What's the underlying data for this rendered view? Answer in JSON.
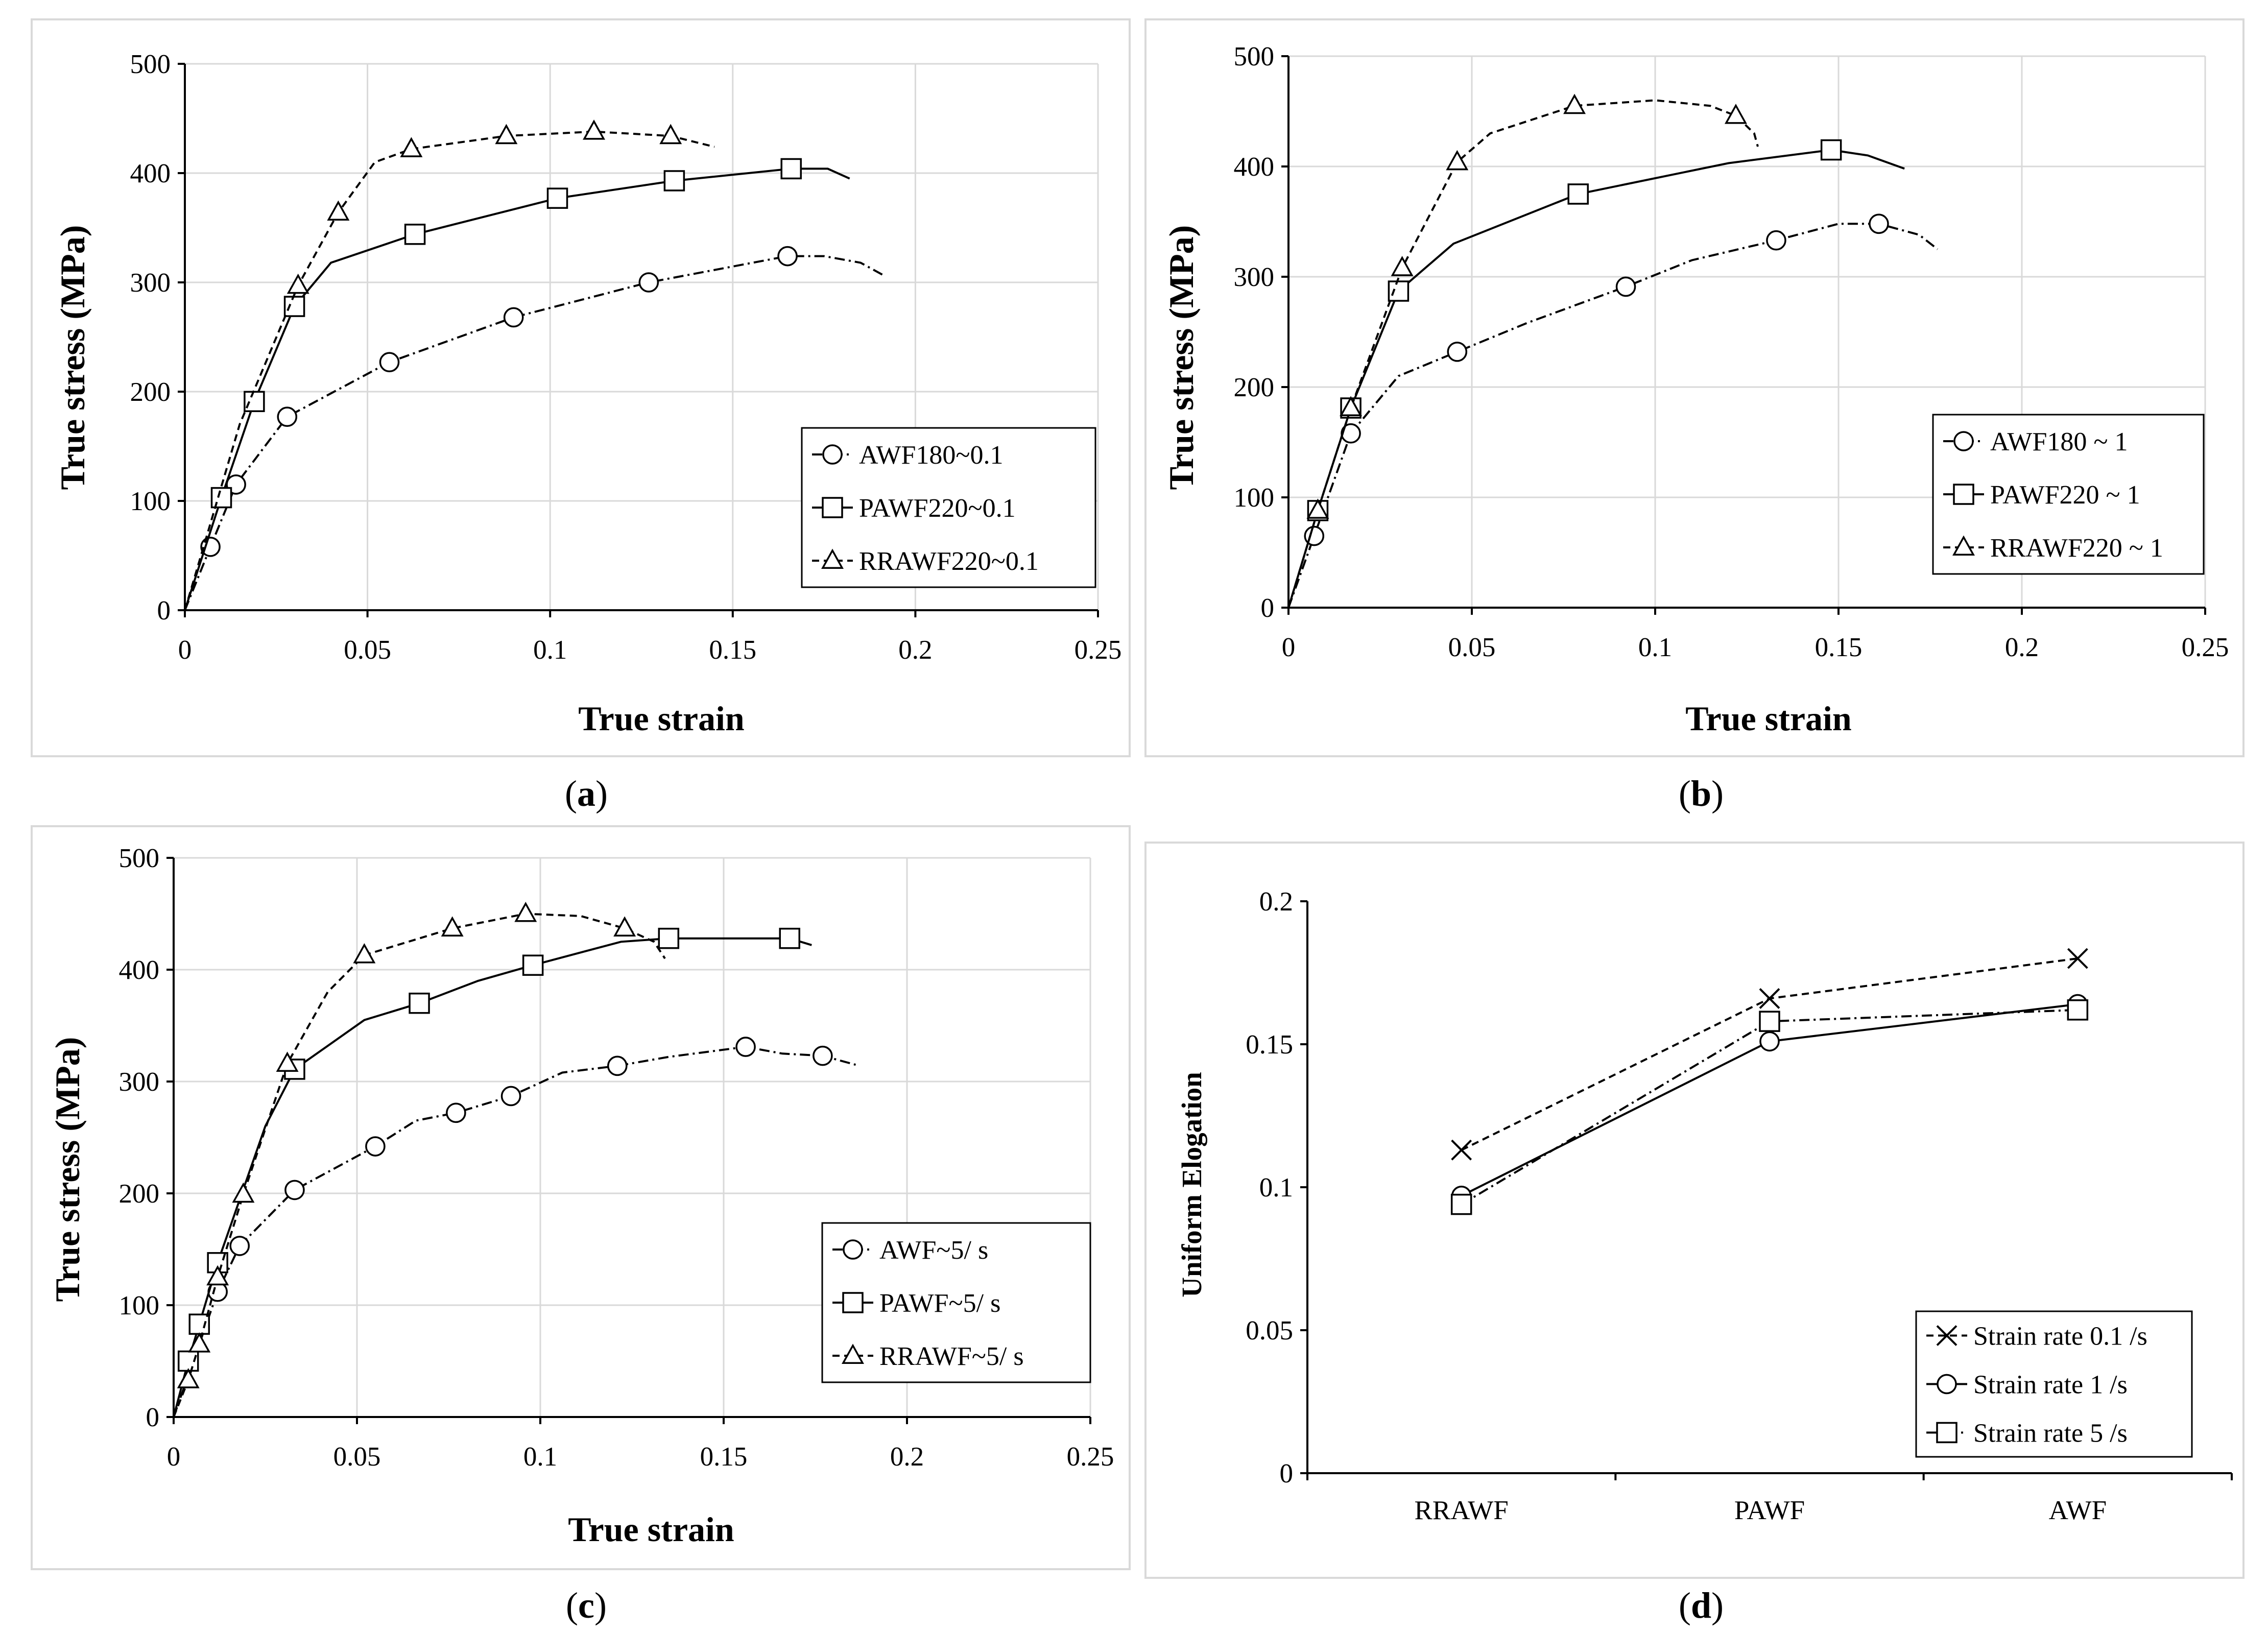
{
  "figure": {
    "captions": [
      {
        "open": "(",
        "letter": "a",
        "close": ")"
      },
      {
        "open": "(",
        "letter": "b",
        "close": ")"
      },
      {
        "open": "(",
        "letter": "c",
        "close": ")"
      },
      {
        "open": "(",
        "letter": "d",
        "close": ")"
      }
    ]
  },
  "chart_data": [
    {
      "type": "line",
      "panel": "a",
      "xlabel": "True strain",
      "ylabel": "True stress (MPa)",
      "xlim": [
        0,
        0.25
      ],
      "ylim": [
        0,
        500
      ],
      "xticks": [
        "0",
        "0.05",
        "0.1",
        "0.15",
        "0.2",
        "0.25"
      ],
      "yticks": [
        "0",
        "100",
        "200",
        "300",
        "400",
        "500"
      ],
      "legend_position": "lower-right",
      "series": [
        {
          "name": "AWF180~0.1",
          "marker": "circle",
          "dash": "dashdot",
          "points": [
            [
              0,
              0
            ],
            [
              0.007,
              58
            ],
            [
              0.014,
              115
            ],
            [
              0.028,
              177
            ],
            [
              0.056,
              227
            ],
            [
              0.09,
              268
            ],
            [
              0.127,
              300
            ],
            [
              0.165,
              324
            ],
            [
              0.175,
              324
            ],
            [
              0.185,
              318
            ],
            [
              0.191,
              307
            ]
          ],
          "markers": [
            [
              0.007,
              58
            ],
            [
              0.014,
              115
            ],
            [
              0.028,
              177
            ],
            [
              0.056,
              227
            ],
            [
              0.09,
              268
            ],
            [
              0.127,
              300
            ],
            [
              0.165,
              324
            ]
          ]
        },
        {
          "name": "PAWF220~0.1",
          "marker": "square",
          "dash": "solid",
          "points": [
            [
              0,
              0
            ],
            [
              0.01,
              103
            ],
            [
              0.019,
              191
            ],
            [
              0.03,
              278
            ],
            [
              0.04,
              318
            ],
            [
              0.063,
              344
            ],
            [
              0.102,
              377
            ],
            [
              0.134,
              393
            ],
            [
              0.166,
              404
            ],
            [
              0.176,
              404
            ],
            [
              0.182,
              395
            ]
          ],
          "markers": [
            [
              0.01,
              103
            ],
            [
              0.019,
              191
            ],
            [
              0.03,
              278
            ],
            [
              0.063,
              344
            ],
            [
              0.102,
              377
            ],
            [
              0.134,
              393
            ],
            [
              0.166,
              404
            ]
          ]
        },
        {
          "name": "RRAWF220~0.1",
          "marker": "triangle",
          "dash": "dashed",
          "points": [
            [
              0,
              0
            ],
            [
              0.015,
              170
            ],
            [
              0.031,
              297
            ],
            [
              0.042,
              364
            ],
            [
              0.052,
              410
            ],
            [
              0.062,
              422
            ],
            [
              0.088,
              434
            ],
            [
              0.112,
              438
            ],
            [
              0.133,
              434
            ],
            [
              0.145,
              424
            ]
          ],
          "markers": [
            [
              0.031,
              297
            ],
            [
              0.042,
              364
            ],
            [
              0.062,
              422
            ],
            [
              0.088,
              434
            ],
            [
              0.112,
              438
            ],
            [
              0.133,
              434
            ]
          ]
        }
      ]
    },
    {
      "type": "line",
      "panel": "b",
      "xlabel": "True strain",
      "ylabel": "True stress (MPa)",
      "xlim": [
        0,
        0.25
      ],
      "ylim": [
        0,
        500
      ],
      "xticks": [
        "0",
        "0.05",
        "0.1",
        "0.15",
        "0.2",
        "0.25"
      ],
      "yticks": [
        "0",
        "100",
        "200",
        "300",
        "400",
        "500"
      ],
      "legend_position": "center-right",
      "series": [
        {
          "name": "AWF180 ~ 1",
          "marker": "circle",
          "dash": "dashdot",
          "points": [
            [
              0,
              0
            ],
            [
              0.007,
              65
            ],
            [
              0.017,
              158
            ],
            [
              0.03,
              210
            ],
            [
              0.046,
              232
            ],
            [
              0.065,
              258
            ],
            [
              0.092,
              291
            ],
            [
              0.11,
              315
            ],
            [
              0.133,
              333
            ],
            [
              0.15,
              348
            ],
            [
              0.161,
              348
            ],
            [
              0.172,
              338
            ],
            [
              0.177,
              325
            ]
          ],
          "markers": [
            [
              0.007,
              65
            ],
            [
              0.017,
              158
            ],
            [
              0.046,
              232
            ],
            [
              0.092,
              291
            ],
            [
              0.133,
              333
            ],
            [
              0.161,
              348
            ]
          ]
        },
        {
          "name": "PAWF220 ~ 1",
          "marker": "square",
          "dash": "solid",
          "points": [
            [
              0,
              0
            ],
            [
              0.008,
              88
            ],
            [
              0.017,
              181
            ],
            [
              0.03,
              287
            ],
            [
              0.045,
              330
            ],
            [
              0.079,
              375
            ],
            [
              0.12,
              403
            ],
            [
              0.148,
              415
            ],
            [
              0.158,
              410
            ],
            [
              0.168,
              398
            ]
          ],
          "markers": [
            [
              0.008,
              88
            ],
            [
              0.017,
              181
            ],
            [
              0.03,
              287
            ],
            [
              0.079,
              375
            ],
            [
              0.148,
              415
            ]
          ]
        },
        {
          "name": "RRAWF220 ~ 1",
          "marker": "triangle",
          "dash": "dashed",
          "points": [
            [
              0,
              0
            ],
            [
              0.008,
              88
            ],
            [
              0.017,
              181
            ],
            [
              0.031,
              308
            ],
            [
              0.046,
              404
            ],
            [
              0.055,
              430
            ],
            [
              0.078,
              455
            ],
            [
              0.1,
              460
            ],
            [
              0.115,
              455
            ],
            [
              0.122,
              446
            ],
            [
              0.127,
              430
            ],
            [
              0.128,
              418
            ]
          ],
          "markers": [
            [
              0.008,
              88
            ],
            [
              0.017,
              181
            ],
            [
              0.031,
              308
            ],
            [
              0.046,
              404
            ],
            [
              0.078,
              455
            ],
            [
              0.122,
              446
            ]
          ]
        }
      ]
    },
    {
      "type": "line",
      "panel": "c",
      "xlabel": "True strain",
      "ylabel": "True stress (MPa)",
      "xlim": [
        0,
        0.25
      ],
      "ylim": [
        0,
        500
      ],
      "xticks": [
        "0",
        "0.05",
        "0.1",
        "0.15",
        "0.2",
        "0.25"
      ],
      "yticks": [
        "0",
        "100",
        "200",
        "300",
        "400",
        "500"
      ],
      "legend_position": "lower-right",
      "series": [
        {
          "name": "AWF~5/ s",
          "marker": "circle",
          "dash": "dashdot",
          "points": [
            [
              0,
              0
            ],
            [
              0.012,
              112
            ],
            [
              0.018,
              153
            ],
            [
              0.033,
              203
            ],
            [
              0.055,
              242
            ],
            [
              0.066,
              265
            ],
            [
              0.077,
              272
            ],
            [
              0.092,
              287
            ],
            [
              0.106,
              308
            ],
            [
              0.121,
              314
            ],
            [
              0.135,
              322
            ],
            [
              0.156,
              331
            ],
            [
              0.166,
              325
            ],
            [
              0.177,
              323
            ],
            [
              0.186,
              315
            ]
          ],
          "markers": [
            [
              0.012,
              112
            ],
            [
              0.018,
              153
            ],
            [
              0.033,
              203
            ],
            [
              0.055,
              242
            ],
            [
              0.077,
              272
            ],
            [
              0.092,
              287
            ],
            [
              0.121,
              314
            ],
            [
              0.156,
              331
            ],
            [
              0.177,
              323
            ]
          ]
        },
        {
          "name": "PAWF~5/ s",
          "marker": "square",
          "dash": "solid",
          "points": [
            [
              0,
              0
            ],
            [
              0.004,
              50
            ],
            [
              0.007,
              83
            ],
            [
              0.012,
              138
            ],
            [
              0.025,
              260
            ],
            [
              0.033,
              311
            ],
            [
              0.052,
              355
            ],
            [
              0.067,
              370
            ],
            [
              0.083,
              390
            ],
            [
              0.098,
              404
            ],
            [
              0.122,
              425
            ],
            [
              0.135,
              428
            ],
            [
              0.16,
              428
            ],
            [
              0.168,
              428
            ],
            [
              0.174,
              422
            ]
          ],
          "markers": [
            [
              0.004,
              50
            ],
            [
              0.007,
              83
            ],
            [
              0.012,
              138
            ],
            [
              0.033,
              311
            ],
            [
              0.067,
              370
            ],
            [
              0.098,
              404
            ],
            [
              0.135,
              428
            ],
            [
              0.168,
              428
            ]
          ]
        },
        {
          "name": "RRAWF~5/ s",
          "marker": "triangle",
          "dash": "dashed",
          "points": [
            [
              0,
              0
            ],
            [
              0.004,
              33
            ],
            [
              0.007,
              65
            ],
            [
              0.012,
              125
            ],
            [
              0.019,
              199
            ],
            [
              0.031,
              316
            ],
            [
              0.042,
              380
            ],
            [
              0.052,
              413
            ],
            [
              0.076,
              437
            ],
            [
              0.096,
              450
            ],
            [
              0.111,
              448
            ],
            [
              0.123,
              437
            ],
            [
              0.131,
              425
            ],
            [
              0.134,
              410
            ]
          ],
          "markers": [
            [
              0.004,
              33
            ],
            [
              0.007,
              65
            ],
            [
              0.012,
              125
            ],
            [
              0.019,
              199
            ],
            [
              0.031,
              316
            ],
            [
              0.052,
              413
            ],
            [
              0.076,
              437
            ],
            [
              0.096,
              450
            ],
            [
              0.123,
              437
            ]
          ]
        }
      ]
    },
    {
      "type": "line",
      "panel": "d",
      "xlabel": "",
      "ylabel": "Uniform Elogation",
      "categories": [
        "RRAWF",
        "PAWF",
        "AWF"
      ],
      "ylim": [
        0,
        0.2
      ],
      "yticks": [
        "0",
        "0.05",
        "0.1",
        "0.15",
        "0.2"
      ],
      "grid": false,
      "legend_position": "lower-right",
      "series": [
        {
          "name": "Strain rate 0.1 /s",
          "marker": "x",
          "dash": "dashed",
          "values": [
            0.113,
            0.166,
            0.18
          ]
        },
        {
          "name": "Strain rate 1 /s",
          "marker": "circle",
          "dash": "solid",
          "values": [
            0.097,
            0.151,
            0.164
          ]
        },
        {
          "name": "Strain rate 5 /s",
          "marker": "square",
          "dash": "dashdot",
          "values": [
            0.094,
            0.158,
            0.162
          ]
        }
      ]
    }
  ]
}
